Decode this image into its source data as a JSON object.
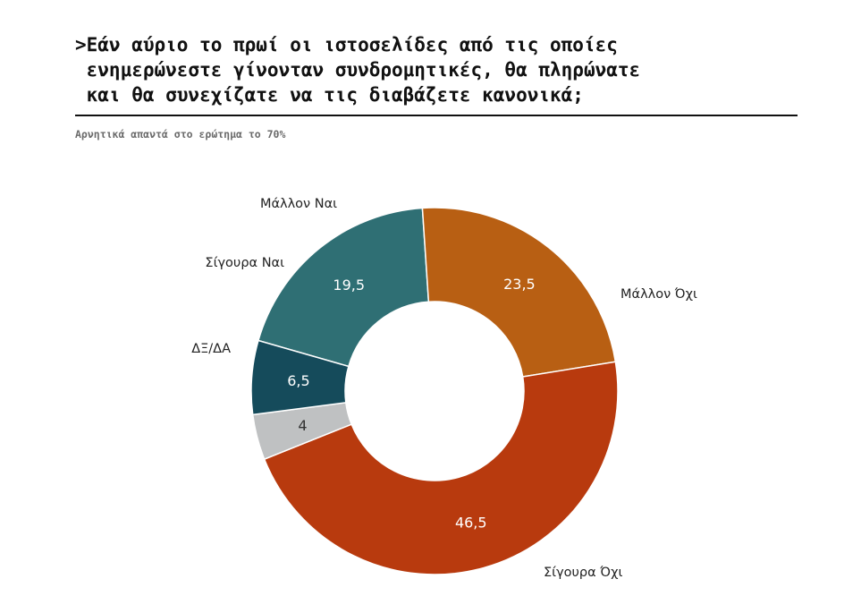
{
  "header": {
    "title_lines": [
      ">Εάν αύριο το πρωί οι ιστοσελίδες από τις οποίες",
      " ενημερώνεστε γίνονταν συνδρομητικές, θα πληρώνατε",
      " και θα συνεχίζατε να τις διαβάζετε κανονικά;"
    ],
    "subtitle": "Αρνητικά απαντά στο ερώτημα το 70%"
  },
  "chart_data": {
    "type": "pie",
    "donut": true,
    "slices": [
      {
        "label": "Μάλλον Ναι",
        "value": 19.5,
        "value_text": "19,5",
        "color": "#2f6f74"
      },
      {
        "label": "Μάλλον Όχι",
        "value": 23.5,
        "value_text": "23,5",
        "color": "#b85f13"
      },
      {
        "label": "Σίγουρα Όχι",
        "value": 46.5,
        "value_text": "46,5",
        "color": "#b83a0e"
      },
      {
        "label": "ΔΞ/ΔΑ",
        "value": 4,
        "value_text": "4",
        "color": "#bfc1c2"
      },
      {
        "label": "Σίγουρα Ναι",
        "value": 6.5,
        "value_text": "6,5",
        "color": "#154b5b"
      }
    ],
    "title": "",
    "legend": "labels-outside"
  }
}
